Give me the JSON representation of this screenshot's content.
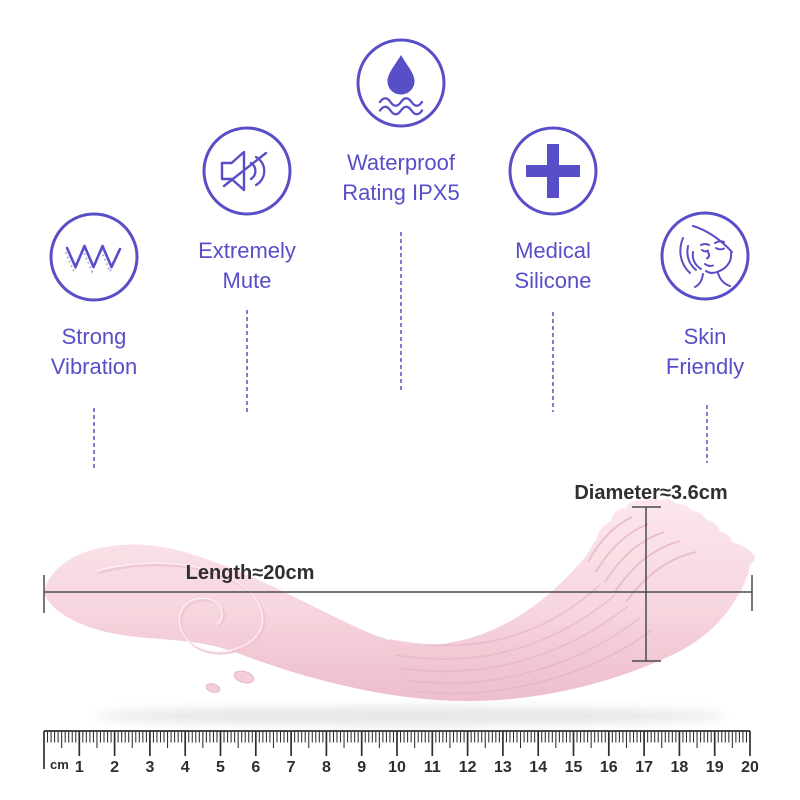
{
  "colors": {
    "accent": "#584ec8",
    "leader_dash": "#837bd4",
    "measure_line": "#4a4a4a",
    "dimension_text": "#2f2f2f",
    "ruler_ink": "#2e2e2e",
    "product_pink": "#f8dae2",
    "product_pink_shadow": "#f1c9d4",
    "background": "#ffffff"
  },
  "features": [
    {
      "icon": "vibration-wave-icon",
      "lines": [
        "Strong",
        "Vibration"
      ]
    },
    {
      "icon": "mute-speaker-icon",
      "lines": [
        "Extremely",
        "Mute"
      ]
    },
    {
      "icon": "waterproof-drop-icon",
      "lines": [
        "Waterproof",
        "Rating IPX5"
      ]
    },
    {
      "icon": "medical-cross-icon",
      "lines": [
        "Medical",
        "Silicone"
      ]
    },
    {
      "icon": "skin-friendly-face-icon",
      "lines": [
        "Skin",
        "Friendly"
      ]
    }
  ],
  "dimensions": {
    "length_label": "Length≈20cm",
    "diameter_label": "Diameter≈3.6cm"
  },
  "ruler": {
    "unit_label": "cm",
    "min_cm": 0,
    "max_cm": 20,
    "numbers": [
      "1",
      "2",
      "3",
      "4",
      "5",
      "6",
      "7",
      "8",
      "9",
      "10",
      "11",
      "12",
      "13",
      "14",
      "15",
      "16",
      "17",
      "18",
      "19",
      "20"
    ]
  }
}
